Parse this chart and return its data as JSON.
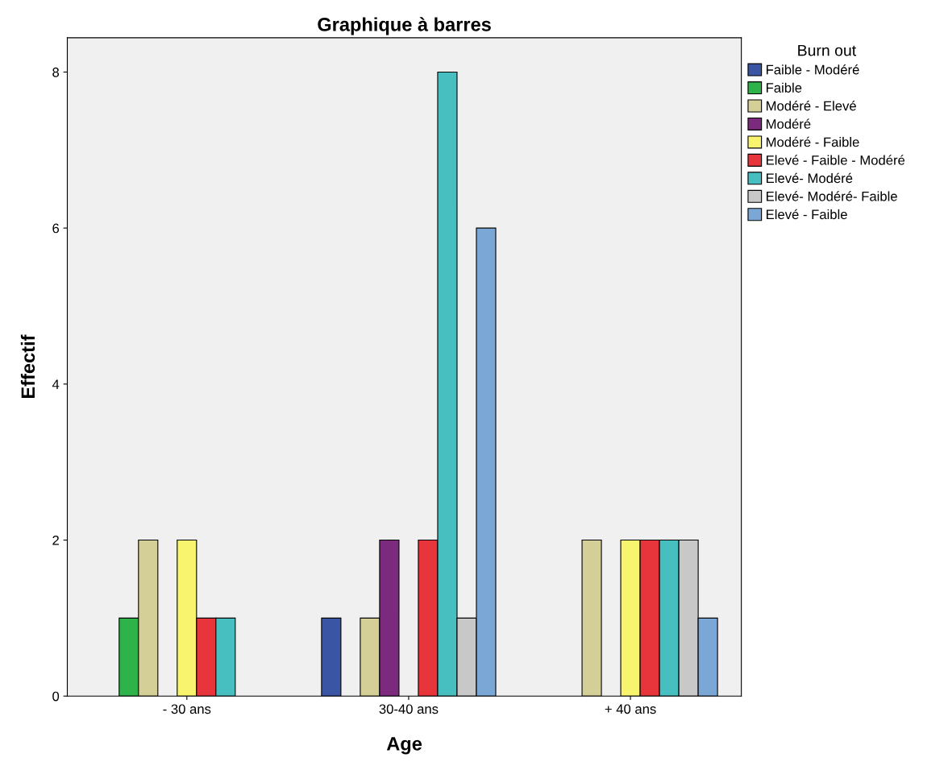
{
  "chart_data": {
    "type": "bar",
    "title": "Graphique à barres",
    "xlabel": "Age",
    "ylabel": "Effectif",
    "legend_title": "Burn out",
    "categories": [
      "- 30 ans",
      "30-40 ans",
      "+ 40 ans"
    ],
    "series": [
      {
        "name": "Faible - Modéré",
        "color": "#3a55a4",
        "values": [
          null,
          1,
          null
        ]
      },
      {
        "name": "Faible",
        "color": "#2db34a",
        "values": [
          1,
          null,
          null
        ]
      },
      {
        "name": "Modéré - Elevé",
        "color": "#d4cf96",
        "values": [
          2,
          1,
          2
        ]
      },
      {
        "name": "Modéré",
        "color": "#7b2a7e",
        "values": [
          null,
          2,
          null
        ]
      },
      {
        "name": "Modéré - Faible",
        "color": "#f9f46e",
        "values": [
          2,
          null,
          2
        ]
      },
      {
        "name": "Elevé - Faible - Modéré",
        "color": "#e8353b",
        "values": [
          1,
          2,
          2
        ]
      },
      {
        "name": "Elevé- Modéré",
        "color": "#47bfc1",
        "values": [
          1,
          8,
          2
        ]
      },
      {
        "name": "Elevé- Modéré- Faible",
        "color": "#c8c8c8",
        "values": [
          null,
          1,
          2
        ]
      },
      {
        "name": "Elevé - Faible",
        "color": "#7aa7d6",
        "values": [
          null,
          6,
          1
        ]
      }
    ],
    "ylim": [
      0,
      8.44
    ],
    "yticks": [
      0,
      2,
      4,
      6,
      8
    ],
    "grid": false,
    "legend": "right"
  }
}
